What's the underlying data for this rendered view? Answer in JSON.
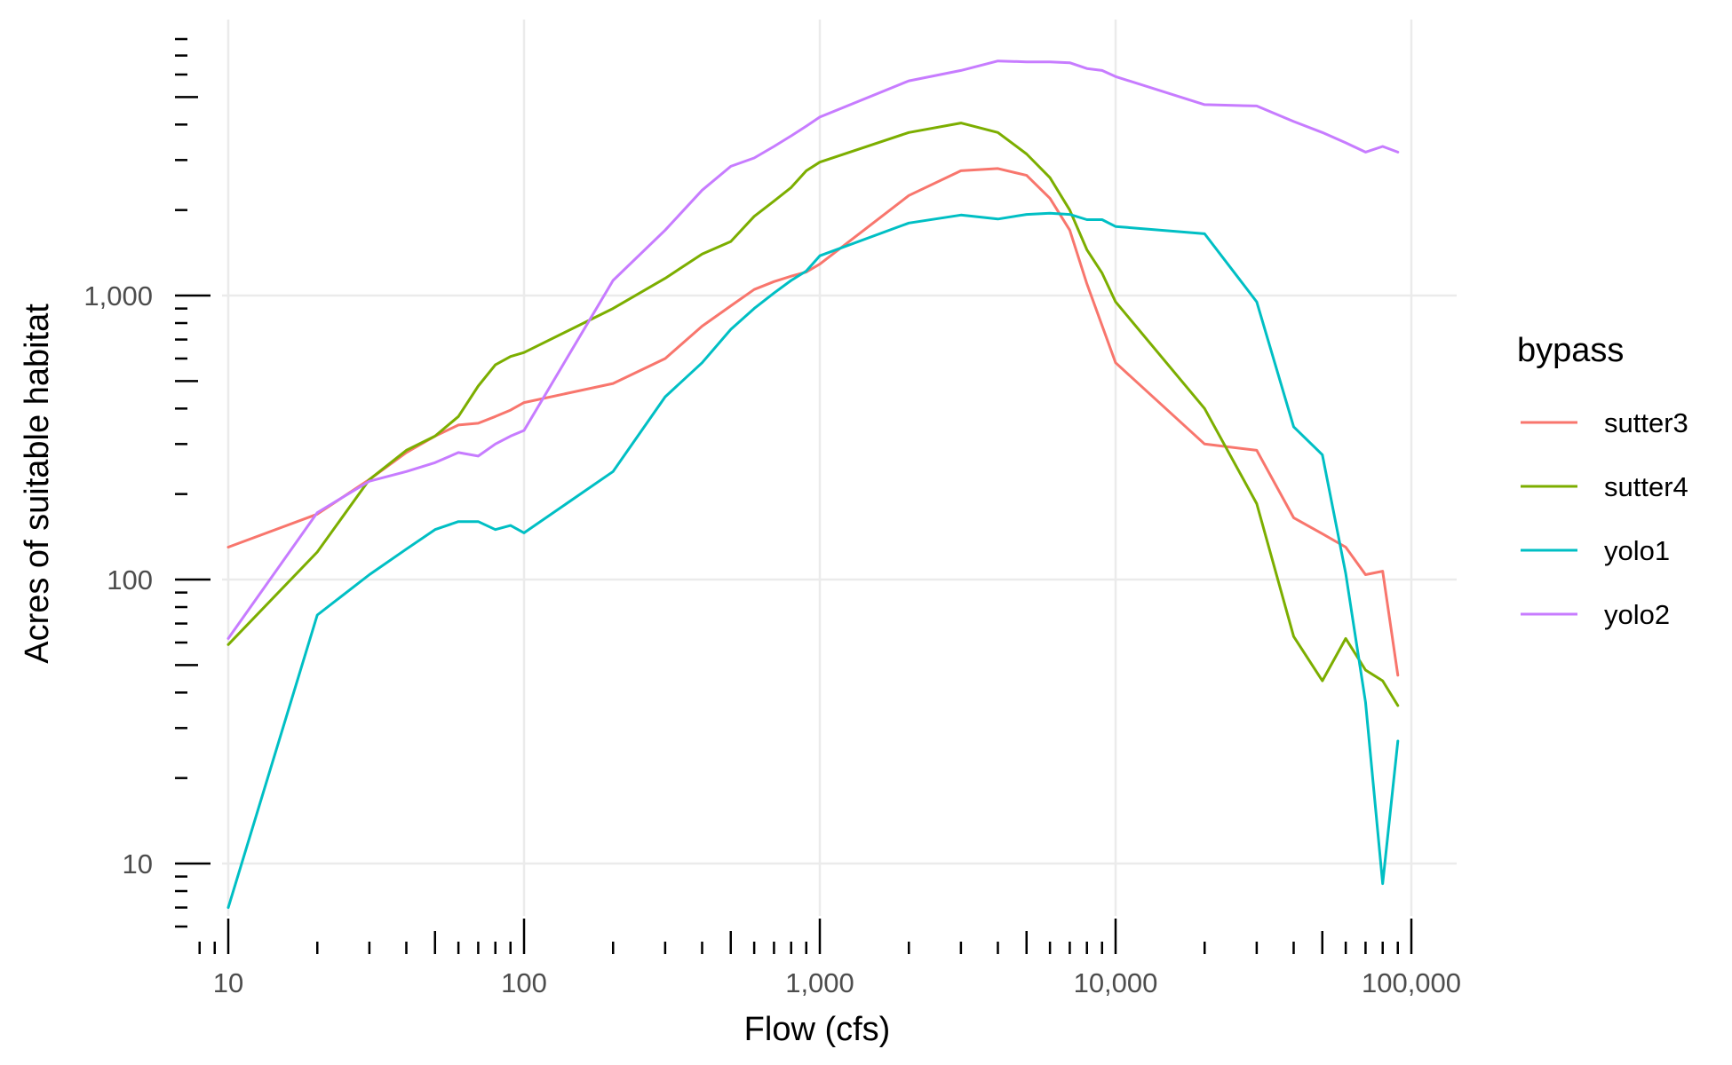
{
  "chart_data": {
    "type": "line",
    "xlabel": "Flow (cfs)",
    "ylabel": "Acres of suitable habitat",
    "x_scale": "log10",
    "y_scale": "log10",
    "xlim": [
      8,
      95000
    ],
    "ylim": [
      5.2,
      8500
    ],
    "x_ticks": [
      10,
      100,
      1000,
      10000,
      100000
    ],
    "x_tick_labels": [
      "10",
      "100",
      "1,000",
      "10,000",
      "100,000"
    ],
    "y_ticks": [
      10,
      100,
      1000
    ],
    "y_tick_labels": [
      "10",
      "100",
      "1,000"
    ],
    "grid": true,
    "legend": {
      "title": "bypass",
      "position": "right"
    },
    "series": [
      {
        "name": "sutter3",
        "color": "#F8766D",
        "points": [
          [
            10,
            130
          ],
          [
            20,
            170
          ],
          [
            30,
            225
          ],
          [
            40,
            280
          ],
          [
            50,
            320
          ],
          [
            60,
            350
          ],
          [
            70,
            355
          ],
          [
            80,
            375
          ],
          [
            90,
            395
          ],
          [
            100,
            420
          ],
          [
            200,
            490
          ],
          [
            300,
            600
          ],
          [
            400,
            780
          ],
          [
            500,
            920
          ],
          [
            600,
            1050
          ],
          [
            700,
            1120
          ],
          [
            800,
            1170
          ],
          [
            900,
            1210
          ],
          [
            1000,
            1290
          ],
          [
            2000,
            2250
          ],
          [
            3000,
            2750
          ],
          [
            4000,
            2800
          ],
          [
            5000,
            2650
          ],
          [
            6000,
            2200
          ],
          [
            7000,
            1700
          ],
          [
            8000,
            1100
          ],
          [
            10000,
            580
          ],
          [
            20000,
            300
          ],
          [
            30000,
            285
          ],
          [
            40000,
            165
          ],
          [
            50000,
            145
          ],
          [
            60000,
            130
          ],
          [
            70000,
            104
          ],
          [
            80000,
            107
          ],
          [
            90000,
            46
          ]
        ]
      },
      {
        "name": "sutter4",
        "color": "#7CAE00",
        "points": [
          [
            10,
            59
          ],
          [
            20,
            125
          ],
          [
            30,
            225
          ],
          [
            40,
            285
          ],
          [
            50,
            320
          ],
          [
            60,
            375
          ],
          [
            70,
            480
          ],
          [
            80,
            570
          ],
          [
            90,
            610
          ],
          [
            100,
            630
          ],
          [
            200,
            900
          ],
          [
            300,
            1150
          ],
          [
            400,
            1400
          ],
          [
            500,
            1550
          ],
          [
            600,
            1900
          ],
          [
            700,
            2150
          ],
          [
            800,
            2400
          ],
          [
            900,
            2750
          ],
          [
            1000,
            2950
          ],
          [
            2000,
            3750
          ],
          [
            3000,
            4050
          ],
          [
            4000,
            3750
          ],
          [
            5000,
            3150
          ],
          [
            6000,
            2600
          ],
          [
            7000,
            2000
          ],
          [
            8000,
            1450
          ],
          [
            9000,
            1200
          ],
          [
            10000,
            950
          ],
          [
            20000,
            400
          ],
          [
            30000,
            185
          ],
          [
            40000,
            63
          ],
          [
            50000,
            44
          ],
          [
            60000,
            62
          ],
          [
            70000,
            48
          ],
          [
            80000,
            44
          ],
          [
            90000,
            36
          ]
        ]
      },
      {
        "name": "yolo1",
        "color": "#00BFC4",
        "points": [
          [
            10,
            7
          ],
          [
            20,
            75
          ],
          [
            30,
            104
          ],
          [
            40,
            128
          ],
          [
            50,
            150
          ],
          [
            60,
            160
          ],
          [
            70,
            160
          ],
          [
            80,
            150
          ],
          [
            90,
            155
          ],
          [
            100,
            146
          ],
          [
            200,
            240
          ],
          [
            300,
            440
          ],
          [
            400,
            580
          ],
          [
            500,
            760
          ],
          [
            600,
            900
          ],
          [
            700,
            1020
          ],
          [
            800,
            1130
          ],
          [
            900,
            1220
          ],
          [
            1000,
            1380
          ],
          [
            2000,
            1800
          ],
          [
            3000,
            1920
          ],
          [
            4000,
            1860
          ],
          [
            5000,
            1930
          ],
          [
            6000,
            1950
          ],
          [
            7000,
            1930
          ],
          [
            8000,
            1850
          ],
          [
            9000,
            1850
          ],
          [
            10000,
            1750
          ],
          [
            20000,
            1650
          ],
          [
            30000,
            950
          ],
          [
            40000,
            345
          ],
          [
            50000,
            275
          ],
          [
            60000,
            105
          ],
          [
            70000,
            37
          ],
          [
            80000,
            8.5
          ],
          [
            90000,
            27
          ]
        ]
      },
      {
        "name": "yolo2",
        "color": "#C77CFF",
        "points": [
          [
            10,
            62
          ],
          [
            20,
            172
          ],
          [
            30,
            222
          ],
          [
            40,
            240
          ],
          [
            50,
            258
          ],
          [
            60,
            280
          ],
          [
            70,
            272
          ],
          [
            80,
            300
          ],
          [
            90,
            320
          ],
          [
            100,
            335
          ],
          [
            200,
            1130
          ],
          [
            300,
            1700
          ],
          [
            400,
            2350
          ],
          [
            500,
            2850
          ],
          [
            600,
            3050
          ],
          [
            700,
            3350
          ],
          [
            800,
            3650
          ],
          [
            900,
            3950
          ],
          [
            1000,
            4250
          ],
          [
            2000,
            5700
          ],
          [
            3000,
            6200
          ],
          [
            4000,
            6700
          ],
          [
            5000,
            6650
          ],
          [
            6000,
            6650
          ],
          [
            7000,
            6600
          ],
          [
            8000,
            6300
          ],
          [
            9000,
            6200
          ],
          [
            10000,
            5900
          ],
          [
            20000,
            4700
          ],
          [
            30000,
            4650
          ],
          [
            40000,
            4100
          ],
          [
            50000,
            3750
          ],
          [
            60000,
            3450
          ],
          [
            70000,
            3200
          ],
          [
            80000,
            3350
          ],
          [
            90000,
            3200
          ]
        ]
      }
    ]
  }
}
